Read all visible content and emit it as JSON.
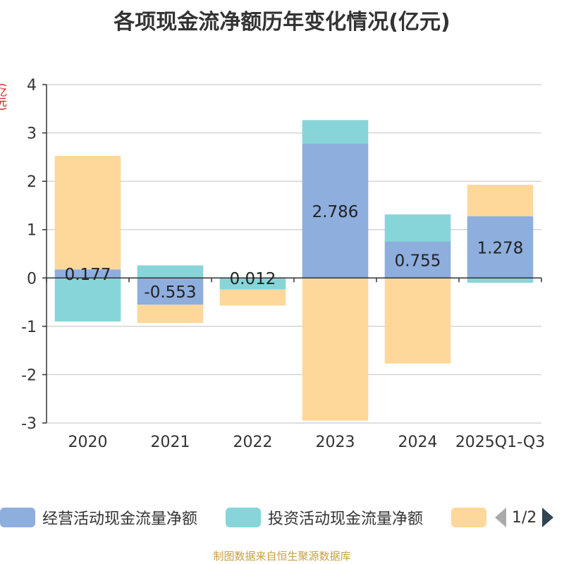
{
  "page_title": "各项现金流净额历年变化情况(亿元)",
  "source_note": "制图数据来自恒生聚源数据库",
  "legend": {
    "page": "1/2"
  },
  "colors": {
    "operating": "#8eaede",
    "investing": "#87d5d8",
    "financing": "#fdd89a",
    "axis": "#333333",
    "grid": "#cccccc"
  },
  "chart_data": {
    "type": "bar",
    "stacked": true,
    "title": "各项现金流净额历年变化情况(亿元)",
    "ylabel": "(亿元)",
    "xlabel": "",
    "ylim": [
      -3,
      4
    ],
    "yticks": [
      4,
      3,
      2,
      1,
      0,
      -1,
      -2,
      -3
    ],
    "categories": [
      "2020",
      "2021",
      "2022",
      "2023",
      "2024",
      "2025Q1-Q3"
    ],
    "series": [
      {
        "name": "经营活动现金流量净额",
        "color": "#8eaede",
        "values": [
          0.177,
          -0.553,
          0.012,
          2.786,
          0.755,
          1.278
        ],
        "labels": [
          "0.177",
          "-0.553",
          "0.012",
          "2.786",
          "0.755",
          "1.278"
        ]
      },
      {
        "name": "投资活动现金流量净额",
        "color": "#87d5d8",
        "values": [
          -0.9,
          0.26,
          -0.24,
          0.48,
          0.56,
          -0.1
        ]
      },
      {
        "name": "",
        "color": "#fdd89a",
        "values": [
          2.35,
          -0.38,
          -0.33,
          -2.95,
          -1.77,
          0.65
        ]
      }
    ]
  }
}
